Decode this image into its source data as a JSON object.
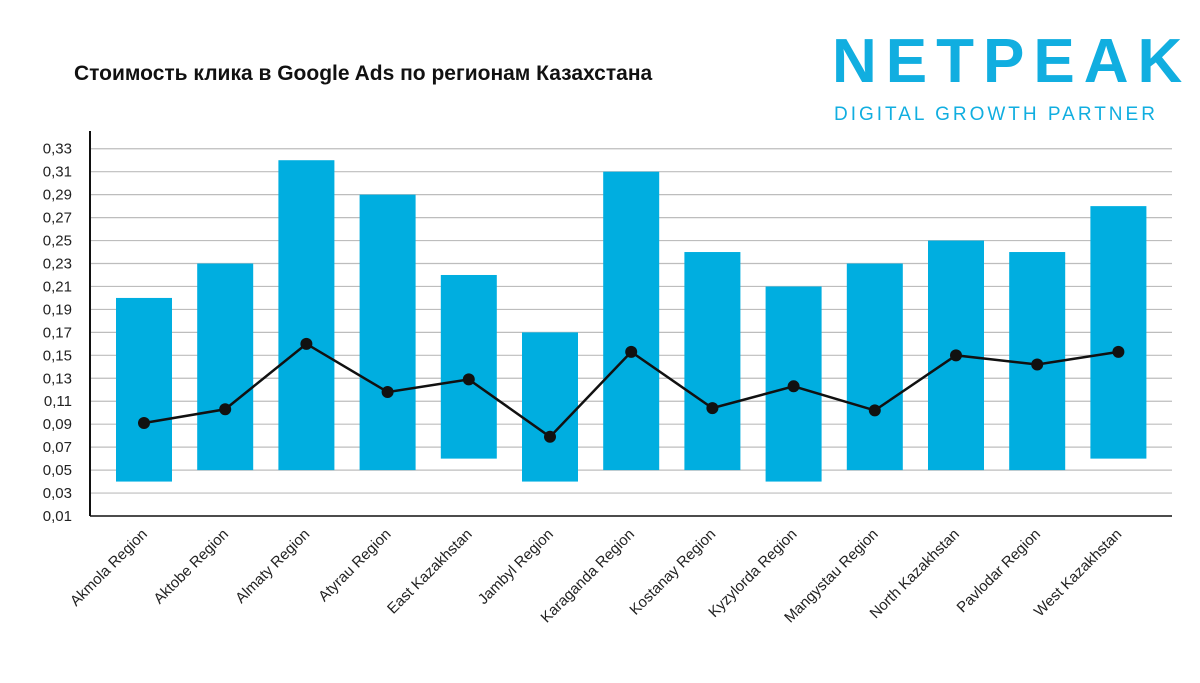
{
  "title": "Стоимость клика в Google Ads по регионам Казахстана",
  "logo": {
    "word": "NETPEAK",
    "tagline": "DIGITAL GROWTH PARTNER"
  },
  "colors": {
    "bar": "#00aee0",
    "line": "#111111",
    "grid": "#bdbdbd",
    "logo": "#11aee0"
  },
  "chart_data": {
    "type": "bar",
    "categories": [
      "Akmola Region",
      "Aktobe Region",
      "Almaty Region",
      "Atyrau Region",
      "East Kazakhstan",
      "Jambyl Region",
      "Karaganda Region",
      "Kostanay Region",
      "Kyzylorda Region",
      "Mangystau Region",
      "North Kazakhstan",
      "Pavlodar Region",
      "West Kazakhstan"
    ],
    "series": [
      {
        "type": "range-bar",
        "low": [
          0.04,
          0.05,
          0.05,
          0.05,
          0.06,
          0.04,
          0.05,
          0.05,
          0.04,
          0.05,
          0.05,
          0.05,
          0.06
        ],
        "high": [
          0.2,
          0.23,
          0.32,
          0.29,
          0.22,
          0.17,
          0.31,
          0.24,
          0.21,
          0.23,
          0.25,
          0.24,
          0.28
        ]
      },
      {
        "type": "line",
        "values": [
          0.091,
          0.103,
          0.16,
          0.118,
          0.129,
          0.079,
          0.153,
          0.104,
          0.123,
          0.102,
          0.15,
          0.142,
          0.153
        ]
      }
    ],
    "yticks": [
      "0,01",
      "0,03",
      "0,05",
      "0,07",
      "0,09",
      "0,11",
      "0,13",
      "0,15",
      "0,17",
      "0,19",
      "0,21",
      "0,23",
      "0,25",
      "0,27",
      "0,29",
      "0,31",
      "0,33"
    ],
    "ylim": [
      0.01,
      0.33
    ],
    "grid": true,
    "legend": "none"
  }
}
